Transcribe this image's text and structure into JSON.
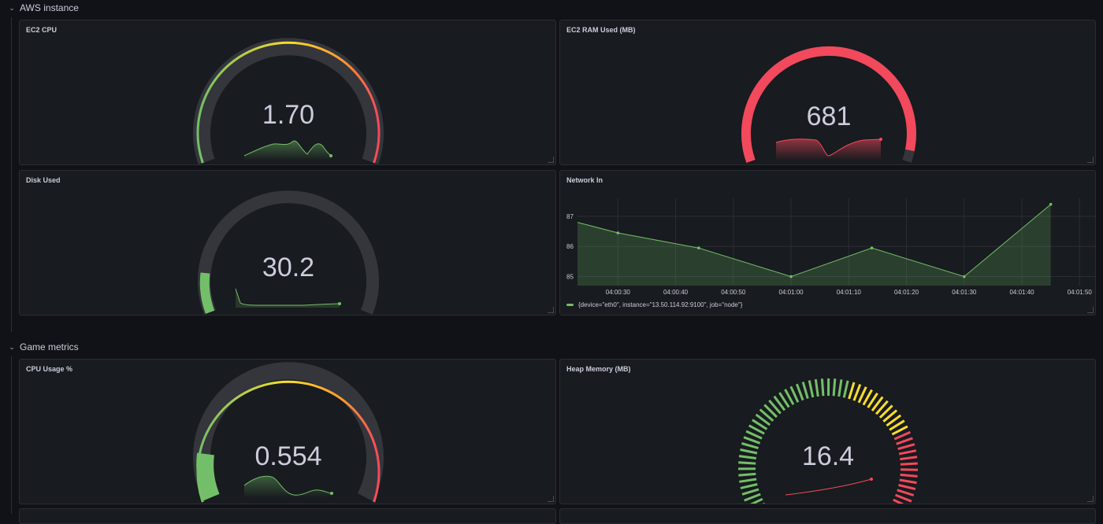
{
  "rows": [
    {
      "title": "AWS instance"
    },
    {
      "title": "Game metrics"
    }
  ],
  "panels": {
    "ec2_cpu": {
      "title": "EC2 CPU",
      "value": "1.70"
    },
    "ec2_ram": {
      "title": "EC2 RAM Used (MB)",
      "value": "681"
    },
    "disk": {
      "title": "Disk Used",
      "value": "30.2"
    },
    "network": {
      "title": "Network In",
      "legend": "{device=\"eth0\", instance=\"13.50.114.92:9100\", job=\"node\"}"
    },
    "cpu_usage": {
      "title": "CPU Usage %",
      "value": "0.554"
    },
    "heap": {
      "title": "Heap Memory (MB)",
      "value": "16.4"
    }
  },
  "colors": {
    "green": "#73bf69",
    "yellow": "#fade2a",
    "orange": "#ff9830",
    "red": "#f2495c",
    "track": "#34363c"
  },
  "chart_data": {
    "type": "area",
    "title": "Network In",
    "x": [
      "04:00:23",
      "04:00:30",
      "04:00:44",
      "04:01:00",
      "04:01:14",
      "04:01:30",
      "04:01:45"
    ],
    "series": [
      {
        "name": "{device=\"eth0\", instance=\"13.50.114.92:9100\", job=\"node\"}",
        "values": [
          86.8,
          86.45,
          85.95,
          85.0,
          85.95,
          85.0,
          87.4
        ]
      }
    ],
    "yticks": [
      85,
      86,
      87
    ],
    "xticks": [
      "04:00:30",
      "04:00:40",
      "04:00:50",
      "04:01:00",
      "04:01:10",
      "04:01:20",
      "04:01:30",
      "04:01:40",
      "04:01:50"
    ],
    "ylim": [
      84.7,
      87.6
    ],
    "grid": true,
    "legend": "bottom-left"
  }
}
